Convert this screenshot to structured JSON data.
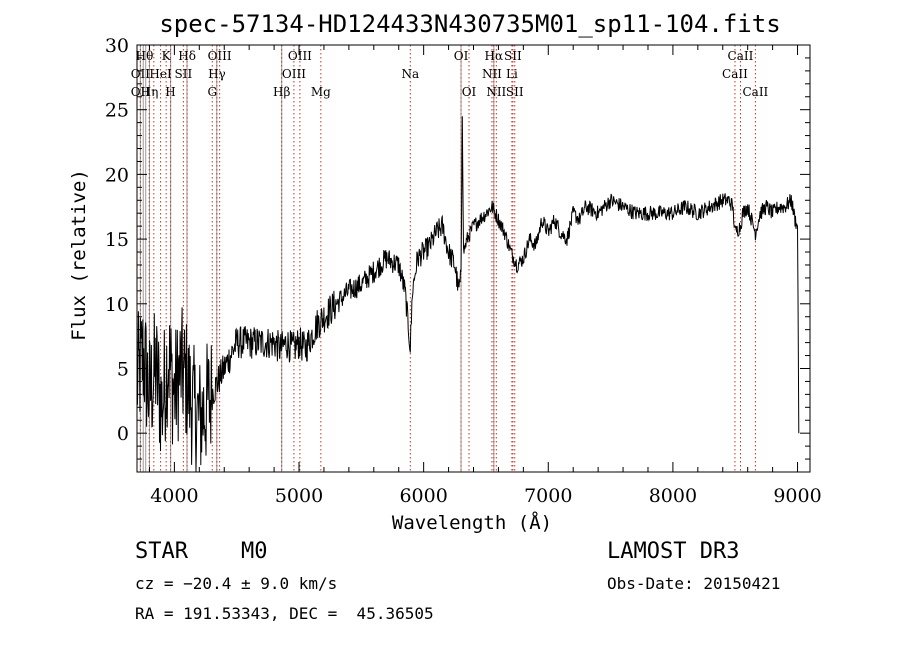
{
  "chart_data": {
    "type": "line",
    "title": "spec-57134-HD124433N430735M01_sp11-104.fits",
    "xlabel": "Wavelength (Å)",
    "ylabel": "Flux (relative)",
    "xlim": [
      3700,
      9100
    ],
    "ylim": [
      -3,
      30
    ],
    "x_ticks": [
      4000,
      5000,
      6000,
      7000,
      8000,
      9000
    ],
    "y_ticks": [
      0,
      5,
      10,
      15,
      20,
      25,
      30
    ],
    "series": [
      {
        "name": "flux",
        "x": [
          3700,
          3750,
          3800,
          3850,
          3900,
          3950,
          4000,
          4050,
          4100,
          4150,
          4200,
          4250,
          4300,
          4350,
          4400,
          4450,
          4500,
          4600,
          4700,
          4800,
          4850,
          4900,
          4950,
          5000,
          5050,
          5100,
          5150,
          5200,
          5300,
          5400,
          5500,
          5600,
          5700,
          5800,
          5850,
          5880,
          5893,
          5910,
          5950,
          6000,
          6050,
          6100,
          6150,
          6200,
          6250,
          6280,
          6300,
          6310,
          6320,
          6350,
          6400,
          6450,
          6500,
          6550,
          6600,
          6650,
          6700,
          6750,
          6800,
          6850,
          6900,
          6950,
          7000,
          7050,
          7100,
          7150,
          7200,
          7250,
          7300,
          7400,
          7500,
          7600,
          7700,
          7800,
          7900,
          8000,
          8100,
          8200,
          8300,
          8400,
          8450,
          8480,
          8500,
          8542,
          8560,
          8600,
          8662,
          8700,
          8750,
          8800,
          8850,
          8900,
          8950,
          8980,
          9000,
          9010
        ],
        "y": [
          4,
          6,
          3,
          5,
          2,
          6,
          3,
          5,
          4,
          2,
          1,
          2,
          3,
          4,
          5,
          6,
          7,
          7,
          7,
          7,
          6.5,
          7,
          6.5,
          7,
          6.5,
          7.5,
          8.5,
          9,
          10,
          11,
          11.5,
          12.5,
          13.5,
          13,
          11,
          8,
          6.5,
          11,
          13.5,
          14,
          14.5,
          15.5,
          16,
          14,
          13,
          11,
          12,
          25,
          14,
          15,
          16,
          16.5,
          17,
          17.5,
          16.5,
          15.5,
          14,
          13,
          13.5,
          15,
          14.5,
          16.5,
          15.5,
          16.5,
          15.5,
          15,
          17,
          16.5,
          17.5,
          17,
          18,
          17.5,
          17,
          17,
          17,
          17,
          17.5,
          17,
          17.5,
          18,
          18,
          17.5,
          15.5,
          16,
          17,
          17.5,
          15.5,
          17,
          17.5,
          17,
          17.5,
          17.5,
          18,
          16.5,
          16,
          0
        ]
      }
    ],
    "lines_solid_gray": [
      {
        "wl": 3727,
        "labels": [
          "OII"
        ]
      },
      {
        "wl": 3750,
        "labels": [
          "Hθ"
        ]
      },
      {
        "wl": 3770,
        "labels": [
          "Hη"
        ]
      },
      {
        "wl": 3800,
        "labels": [
          "Hζ"
        ]
      },
      {
        "wl": 3970,
        "labels": [
          "Hε"
        ]
      },
      {
        "wl": 4101,
        "labels": [
          "Hδ"
        ]
      },
      {
        "wl": 4340,
        "labels": [
          "Hγ"
        ]
      },
      {
        "wl": 4861,
        "labels": [
          "Hβ"
        ]
      },
      {
        "wl": 6300,
        "labels": [
          "OI"
        ]
      },
      {
        "wl": 6563,
        "labels": [
          "Hα"
        ]
      }
    ],
    "lines_dotted_red": [
      {
        "wl": 3727,
        "labels": [
          "OII"
        ]
      },
      {
        "wl": 3798,
        "labels": [
          "Hθ"
        ]
      },
      {
        "wl": 3835,
        "labels": [
          "Hη"
        ]
      },
      {
        "wl": 3889,
        "labels": [
          "HeI"
        ]
      },
      {
        "wl": 3934,
        "labels": [
          "K"
        ]
      },
      {
        "wl": 3969,
        "labels": [
          "H"
        ]
      },
      {
        "wl": 4072,
        "labels": [
          "SII"
        ]
      },
      {
        "wl": 4102,
        "labels": [
          "Hδ"
        ]
      },
      {
        "wl": 4304,
        "labels": [
          "G"
        ]
      },
      {
        "wl": 4341,
        "labels": [
          "Hγ"
        ]
      },
      {
        "wl": 4363,
        "labels": [
          "OIII"
        ]
      },
      {
        "wl": 4861,
        "labels": [
          "Hβ"
        ]
      },
      {
        "wl": 4959,
        "labels": [
          "OIII"
        ]
      },
      {
        "wl": 5007,
        "labels": [
          "OIII"
        ]
      },
      {
        "wl": 5175,
        "labels": [
          "Mg"
        ]
      },
      {
        "wl": 5893,
        "labels": [
          "Na"
        ]
      },
      {
        "wl": 6300,
        "labels": [
          "OI"
        ]
      },
      {
        "wl": 6364,
        "labels": [
          "OI"
        ]
      },
      {
        "wl": 6548,
        "labels": [
          "NII"
        ]
      },
      {
        "wl": 6563,
        "labels": [
          "Hα"
        ]
      },
      {
        "wl": 6583,
        "labels": [
          "NII"
        ]
      },
      {
        "wl": 6708,
        "labels": [
          "Li"
        ]
      },
      {
        "wl": 6716,
        "labels": [
          "SII"
        ]
      },
      {
        "wl": 6731,
        "labels": [
          "SII"
        ]
      },
      {
        "wl": 8498,
        "labels": [
          "CaII"
        ]
      },
      {
        "wl": 8542,
        "labels": [
          "CaII"
        ]
      },
      {
        "wl": 8662,
        "labels": [
          "CaII"
        ]
      }
    ],
    "line_label_rows": [
      [
        {
          "text": "Hθ",
          "wl": 3760
        },
        {
          "text": "K",
          "wl": 3934
        },
        {
          "text": "Hδ",
          "wl": 4102
        },
        {
          "text": "OIII",
          "wl": 4363
        },
        {
          "text": "OIII",
          "wl": 5007
        },
        {
          "text": "OI",
          "wl": 6300
        },
        {
          "text": "Hα",
          "wl": 6563
        },
        {
          "text": "SII",
          "wl": 6716
        },
        {
          "text": "CaII",
          "wl": 8542
        }
      ],
      [
        {
          "text": "OII",
          "wl": 3727
        },
        {
          "text": "HeI",
          "wl": 3889
        },
        {
          "text": "SII",
          "wl": 4072
        },
        {
          "text": "Hγ",
          "wl": 4341
        },
        {
          "text": "OIII",
          "wl": 4959
        },
        {
          "text": "Na",
          "wl": 5893
        },
        {
          "text": "NII",
          "wl": 6548
        },
        {
          "text": "Li",
          "wl": 6708
        },
        {
          "text": "CaII",
          "wl": 8498
        }
      ],
      [
        {
          "text": "OII",
          "wl": 3727
        },
        {
          "text": "Hη",
          "wl": 3800
        },
        {
          "text": "H",
          "wl": 3969
        },
        {
          "text": "G",
          "wl": 4304
        },
        {
          "text": "Hβ",
          "wl": 4861
        },
        {
          "text": "Mg",
          "wl": 5175
        },
        {
          "text": "OI",
          "wl": 6364
        },
        {
          "text": "NII",
          "wl": 6583
        },
        {
          "text": "SII",
          "wl": 6731
        },
        {
          "text": "CaII",
          "wl": 8662
        }
      ]
    ]
  },
  "info": {
    "class_label": "STAR",
    "subclass": "M0",
    "survey": "LAMOST DR3",
    "cz": "cz = −20.4 ± 9.0 km/s",
    "obs_date": "Obs-Date: 20150421",
    "coords": "RA = 191.53343, DEC =  45.36505"
  }
}
